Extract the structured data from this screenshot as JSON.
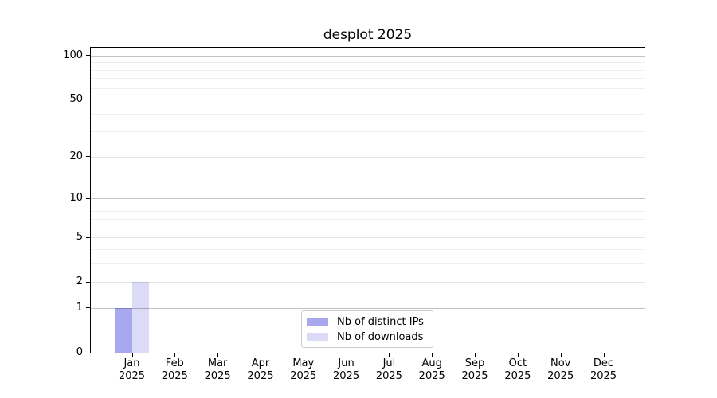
{
  "chart_data": {
    "type": "bar",
    "title": "desplot 2025",
    "months": [
      "Jan",
      "Feb",
      "Mar",
      "Apr",
      "May",
      "Jun",
      "Jul",
      "Aug",
      "Sep",
      "Oct",
      "Nov",
      "Dec"
    ],
    "year": "2025",
    "series": [
      {
        "name": "Nb of distinct IPs",
        "color": "rgba(0,0,208,0.34)",
        "values": [
          1,
          0,
          0,
          0,
          0,
          0,
          0,
          0,
          0,
          0,
          0,
          0
        ]
      },
      {
        "name": "Nb of downloads",
        "color": "rgba(0,0,208,0.14)",
        "values": [
          2,
          0,
          0,
          0,
          0,
          0,
          0,
          0,
          0,
          0,
          0,
          0
        ]
      }
    ],
    "y_scale": "log1p",
    "ylim": [
      0,
      113
    ],
    "y_ticks": [
      0,
      1,
      2,
      5,
      10,
      20,
      50,
      100
    ],
    "y_decade_gridlines": [
      1,
      10,
      100
    ],
    "y_minor_gridlines": [
      3,
      4,
      6,
      7,
      8,
      9,
      30,
      40,
      60,
      70,
      80,
      90
    ],
    "grid": "both",
    "legend_position": "lower center",
    "colors": {
      "background": "#ffffff",
      "axis": "#000000",
      "decade_grid": "#c2c2c2",
      "sub_grid": "#e4e4e4",
      "minor_grid": "#efefef"
    }
  }
}
